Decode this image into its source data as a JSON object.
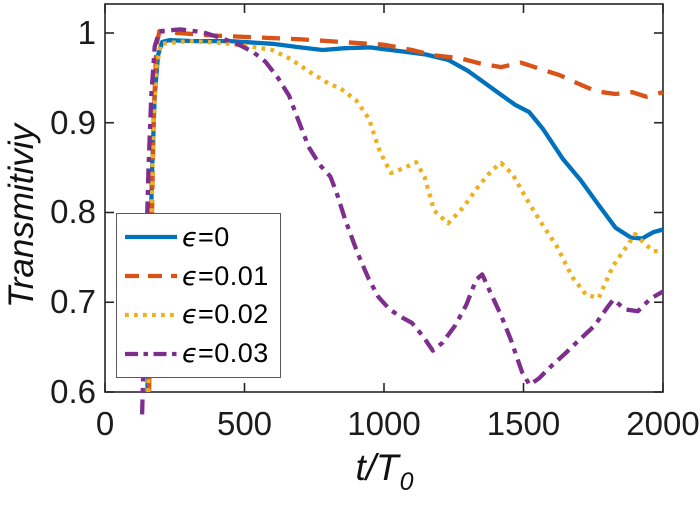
{
  "figure": {
    "background": "#ffffff",
    "axis_color": "#262626"
  },
  "chart_data": {
    "type": "line",
    "title": "",
    "ylabel": "Transmitiviy",
    "xlabel": "t/T_0",
    "xlabel_parts": {
      "main": "t/T",
      "sub": "0"
    },
    "xlim": [
      0,
      2000
    ],
    "ylim": [
      0.6,
      1.0323
    ],
    "grid": false,
    "legend_position": "inside lower-left",
    "axis_color": "#262626",
    "xticks": {
      "values": [
        0,
        500,
        1000,
        1500,
        2000
      ],
      "labels": [
        "0",
        "500",
        "1000",
        "1500",
        "2000"
      ]
    },
    "yticks": {
      "values": [
        0.6,
        0.7,
        0.8,
        0.9,
        1.0
      ],
      "labels": [
        "0.6",
        "0.7",
        "0.8",
        "0.9",
        "1"
      ]
    },
    "series": [
      {
        "name": "epsilon-0",
        "legend": {
          "symbol": "ϵ",
          "text": "=0"
        },
        "color": "#0072BD",
        "style": "solid",
        "points": [
          [
            152,
            0.6
          ],
          [
            160,
            0.72
          ],
          [
            168,
            0.84
          ],
          [
            178,
            0.93
          ],
          [
            190,
            0.975
          ],
          [
            205,
            0.99
          ],
          [
            230,
            0.992
          ],
          [
            320,
            0.991
          ],
          [
            450,
            0.991
          ],
          [
            600,
            0.988
          ],
          [
            700,
            0.984
          ],
          [
            780,
            0.981
          ],
          [
            860,
            0.983
          ],
          [
            950,
            0.984
          ],
          [
            1050,
            0.98
          ],
          [
            1150,
            0.976
          ],
          [
            1230,
            0.97
          ],
          [
            1300,
            0.958
          ],
          [
            1345,
            0.948
          ],
          [
            1420,
            0.931
          ],
          [
            1470,
            0.92
          ],
          [
            1520,
            0.912
          ],
          [
            1570,
            0.893
          ],
          [
            1640,
            0.86
          ],
          [
            1705,
            0.836
          ],
          [
            1770,
            0.808
          ],
          [
            1830,
            0.783
          ],
          [
            1885,
            0.772
          ],
          [
            1925,
            0.771
          ],
          [
            1965,
            0.778
          ],
          [
            2000,
            0.781
          ]
        ]
      },
      {
        "name": "epsilon-0.01",
        "legend": {
          "symbol": "ϵ",
          "text": "=0.01"
        },
        "color": "#D95319",
        "style": "dashed",
        "points": [
          [
            158,
            0.6
          ],
          [
            166,
            0.75
          ],
          [
            174,
            0.9
          ],
          [
            184,
            0.985
          ],
          [
            195,
            1.002
          ],
          [
            260,
            1.0
          ],
          [
            400,
            0.997
          ],
          [
            550,
            0.995
          ],
          [
            700,
            0.993
          ],
          [
            850,
            0.99
          ],
          [
            1000,
            0.987
          ],
          [
            1100,
            0.981
          ],
          [
            1180,
            0.975
          ],
          [
            1270,
            0.972
          ],
          [
            1345,
            0.966
          ],
          [
            1420,
            0.962
          ],
          [
            1490,
            0.967
          ],
          [
            1560,
            0.96
          ],
          [
            1630,
            0.953
          ],
          [
            1700,
            0.943
          ],
          [
            1760,
            0.935
          ],
          [
            1830,
            0.932
          ],
          [
            1890,
            0.934
          ],
          [
            1940,
            0.929
          ],
          [
            2000,
            0.934
          ]
        ]
      },
      {
        "name": "epsilon-0.02",
        "legend": {
          "symbol": "ϵ",
          "text": "=0.02"
        },
        "color": "#EDB120",
        "style": "dotted",
        "points": [
          [
            155,
            0.6
          ],
          [
            163,
            0.74
          ],
          [
            172,
            0.88
          ],
          [
            183,
            0.96
          ],
          [
            200,
            0.988
          ],
          [
            300,
            0.991
          ],
          [
            420,
            0.989
          ],
          [
            520,
            0.985
          ],
          [
            600,
            0.981
          ],
          [
            665,
            0.971
          ],
          [
            737,
            0.956
          ],
          [
            800,
            0.944
          ],
          [
            845,
            0.938
          ],
          [
            900,
            0.925
          ],
          [
            945,
            0.905
          ],
          [
            985,
            0.868
          ],
          [
            1025,
            0.844
          ],
          [
            1075,
            0.85
          ],
          [
            1115,
            0.856
          ],
          [
            1145,
            0.84
          ],
          [
            1180,
            0.802
          ],
          [
            1230,
            0.788
          ],
          [
            1285,
            0.806
          ],
          [
            1340,
            0.83
          ],
          [
            1390,
            0.848
          ],
          [
            1420,
            0.855
          ],
          [
            1460,
            0.843
          ],
          [
            1515,
            0.813
          ],
          [
            1565,
            0.788
          ],
          [
            1620,
            0.762
          ],
          [
            1675,
            0.728
          ],
          [
            1725,
            0.708
          ],
          [
            1770,
            0.705
          ],
          [
            1820,
            0.74
          ],
          [
            1865,
            0.76
          ],
          [
            1900,
            0.776
          ],
          [
            1935,
            0.765
          ],
          [
            1965,
            0.757
          ],
          [
            2000,
            0.757
          ]
        ]
      },
      {
        "name": "epsilon-0.03",
        "legend": {
          "symbol": "ϵ",
          "text": "=0.03"
        },
        "color": "#7E2F8E",
        "style": "dashdot",
        "points": [
          [
            133,
            0.575
          ],
          [
            140,
            0.66
          ],
          [
            148,
            0.76
          ],
          [
            156,
            0.85
          ],
          [
            166,
            0.93
          ],
          [
            178,
            0.985
          ],
          [
            195,
            1.002
          ],
          [
            270,
            1.004
          ],
          [
            350,
            1.001
          ],
          [
            420,
            0.994
          ],
          [
            480,
            0.987
          ],
          [
            530,
            0.979
          ],
          [
            575,
            0.968
          ],
          [
            620,
            0.95
          ],
          [
            660,
            0.93
          ],
          [
            695,
            0.901
          ],
          [
            730,
            0.873
          ],
          [
            770,
            0.853
          ],
          [
            808,
            0.84
          ],
          [
            830,
            0.822
          ],
          [
            860,
            0.793
          ],
          [
            905,
            0.755
          ],
          [
            945,
            0.726
          ],
          [
            980,
            0.706
          ],
          [
            1020,
            0.692
          ],
          [
            1065,
            0.683
          ],
          [
            1100,
            0.677
          ],
          [
            1140,
            0.662
          ],
          [
            1175,
            0.646
          ],
          [
            1210,
            0.655
          ],
          [
            1255,
            0.674
          ],
          [
            1295,
            0.697
          ],
          [
            1330,
            0.725
          ],
          [
            1352,
            0.731
          ],
          [
            1380,
            0.712
          ],
          [
            1420,
            0.685
          ],
          [
            1455,
            0.658
          ],
          [
            1495,
            0.622
          ],
          [
            1522,
            0.608
          ],
          [
            1555,
            0.615
          ],
          [
            1600,
            0.629
          ],
          [
            1650,
            0.643
          ],
          [
            1700,
            0.658
          ],
          [
            1755,
            0.674
          ],
          [
            1800,
            0.694
          ],
          [
            1822,
            0.703
          ],
          [
            1865,
            0.692
          ],
          [
            1910,
            0.69
          ],
          [
            1955,
            0.704
          ],
          [
            2000,
            0.712
          ]
        ]
      }
    ]
  }
}
